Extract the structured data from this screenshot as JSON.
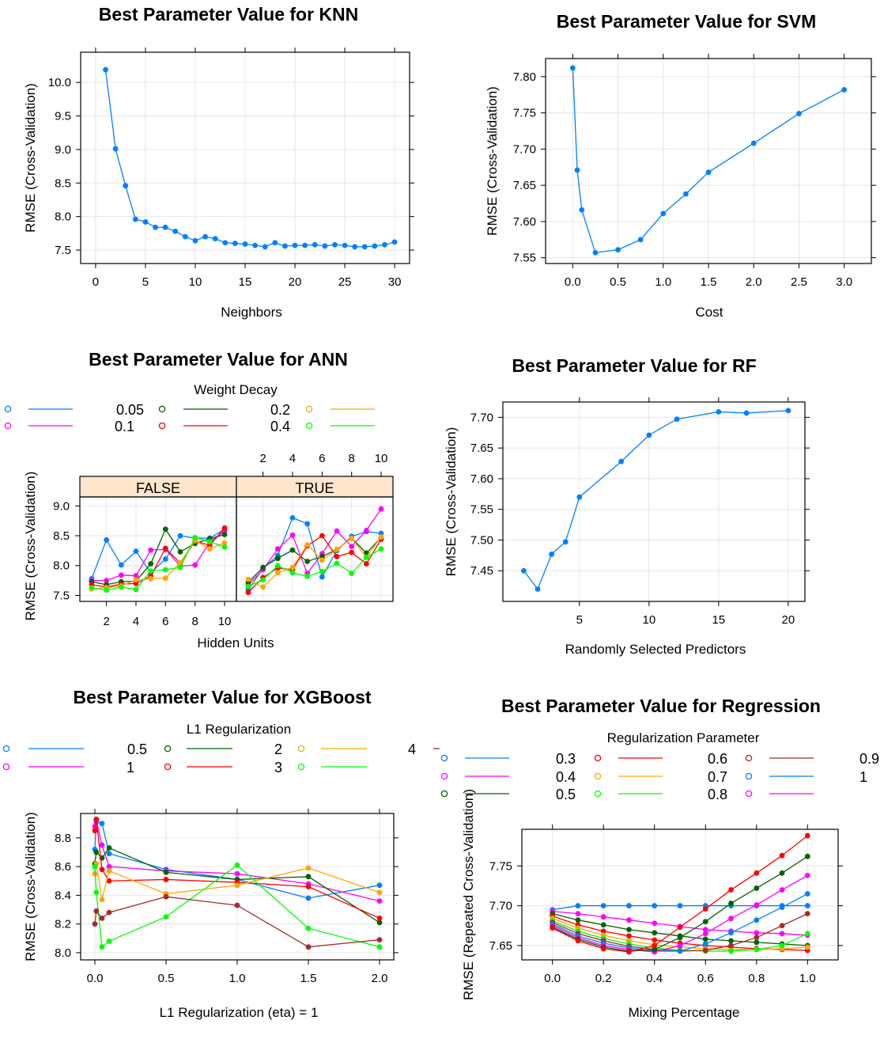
{
  "colors": {
    "blue": "#0080ff",
    "magenta": "#ff00ff",
    "darkgreen": "#006400",
    "red": "#ff0000",
    "orange": "#ffa500",
    "green": "#00ff00",
    "brown": "#a52a2a",
    "strip": "#ffe5cc",
    "grid": "#e6e6e6"
  },
  "chart_data": [
    {
      "id": "knn",
      "type": "line",
      "title": "Best Parameter Value for KNN",
      "xlabel": "Neighbors",
      "ylabel": "RMSE (Cross-Validation)",
      "xlim": [
        -1.5,
        31.5
      ],
      "ylim": [
        7.3,
        10.45
      ],
      "xticks": [
        "0",
        "5",
        "10",
        "15",
        "20",
        "25",
        "30"
      ],
      "yticks": [
        "7.5",
        "8.0",
        "8.5",
        "9.0",
        "9.5",
        "10.0"
      ],
      "series": [
        {
          "color": "blue",
          "x": [
            1,
            2,
            3,
            4,
            5,
            6,
            7,
            8,
            9,
            10,
            11,
            12,
            13,
            14,
            15,
            16,
            17,
            18,
            19,
            20,
            21,
            22,
            23,
            24,
            25,
            26,
            27,
            28,
            29,
            30
          ],
          "y": [
            10.19,
            9.01,
            8.46,
            7.96,
            7.92,
            7.84,
            7.84,
            7.78,
            7.7,
            7.64,
            7.7,
            7.67,
            7.61,
            7.6,
            7.59,
            7.57,
            7.55,
            7.61,
            7.56,
            7.57,
            7.57,
            7.58,
            7.56,
            7.58,
            7.57,
            7.55,
            7.55,
            7.56,
            7.58,
            7.62
          ]
        }
      ]
    },
    {
      "id": "svm",
      "type": "line",
      "title": "Best Parameter Value for SVM",
      "xlabel": "Cost",
      "ylabel": "RMSE (Cross-Validation)",
      "xlim": [
        -0.3,
        3.3
      ],
      "ylim": [
        7.542,
        7.825
      ],
      "xticks": [
        "0.0",
        "0.5",
        "1.0",
        "1.5",
        "2.0",
        "2.5",
        "3.0"
      ],
      "yticks": [
        "7.55",
        "7.60",
        "7.65",
        "7.70",
        "7.75",
        "7.80"
      ],
      "series": [
        {
          "color": "blue",
          "x": [
            0.0,
            0.05,
            0.1,
            0.25,
            0.5,
            0.75,
            1.0,
            1.25,
            1.5,
            2.0,
            2.5,
            3.0
          ],
          "y": [
            7.812,
            7.671,
            7.616,
            7.557,
            7.561,
            7.575,
            7.611,
            7.638,
            7.668,
            7.708,
            7.749,
            7.782
          ]
        }
      ]
    },
    {
      "id": "ann",
      "type": "line",
      "title": "Best Parameter Value for ANN",
      "xlabel": "Hidden Units",
      "ylabel": "RMSE (Cross-Validation)",
      "legend_title": "Weight Decay",
      "legend": [
        {
          "label": "",
          "color": "blue"
        },
        {
          "label": "",
          "color": "magenta"
        },
        {
          "label": "0.05",
          "color": "darkgreen"
        },
        {
          "label": "0.1",
          "color": "red"
        },
        {
          "label": "0.2",
          "color": "orange"
        },
        {
          "label": "0.4",
          "color": "green"
        }
      ],
      "panels": [
        "FALSE",
        "TRUE"
      ],
      "xlim": [
        0.2,
        10.8
      ],
      "ylim": [
        7.4,
        9.15
      ],
      "xticks": [
        "2",
        "4",
        "6",
        "8",
        "10"
      ],
      "yticks": [
        "7.5",
        "8.0",
        "8.5",
        "9.0"
      ],
      "x": [
        1,
        2,
        3,
        4,
        5,
        6,
        7,
        8,
        9,
        10
      ],
      "series_false": [
        {
          "color": "blue",
          "y": [
            7.78,
            8.43,
            8.01,
            8.24,
            7.88,
            8.11,
            8.5,
            8.46,
            8.46,
            8.61
          ]
        },
        {
          "color": "magenta",
          "y": [
            7.75,
            7.75,
            7.84,
            7.83,
            8.26,
            8.27,
            7.99,
            8.01,
            8.39,
            8.58
          ]
        },
        {
          "color": "darkgreen",
          "y": [
            7.73,
            7.68,
            7.73,
            7.74,
            8.03,
            8.61,
            8.23,
            8.37,
            8.45,
            8.52
          ]
        },
        {
          "color": "red",
          "y": [
            7.68,
            7.64,
            7.69,
            7.7,
            7.82,
            8.29,
            8.04,
            8.41,
            8.34,
            8.63
          ]
        },
        {
          "color": "orange",
          "y": [
            7.61,
            7.63,
            7.66,
            7.76,
            7.78,
            7.79,
            8.05,
            8.42,
            8.28,
            8.38
          ]
        },
        {
          "color": "green",
          "y": [
            7.63,
            7.59,
            7.64,
            7.6,
            7.91,
            7.93,
            7.97,
            8.47,
            8.4,
            8.31
          ]
        }
      ],
      "series_true": [
        {
          "color": "blue",
          "y": [
            7.6,
            7.95,
            8.17,
            8.8,
            8.7,
            7.81,
            8.25,
            8.49,
            8.57,
            8.54
          ]
        },
        {
          "color": "magenta",
          "y": [
            7.68,
            7.93,
            8.28,
            8.51,
            7.87,
            8.2,
            8.58,
            8.32,
            8.59,
            8.95
          ]
        },
        {
          "color": "darkgreen",
          "y": [
            7.72,
            7.97,
            8.12,
            8.26,
            8.07,
            8.15,
            8.27,
            8.46,
            8.21,
            8.47
          ]
        },
        {
          "color": "red",
          "y": [
            7.55,
            7.8,
            7.96,
            7.93,
            8.33,
            8.5,
            8.15,
            8.22,
            8.03,
            8.44
          ]
        },
        {
          "color": "orange",
          "y": [
            7.77,
            7.64,
            7.88,
            7.97,
            8.35,
            8.09,
            8.27,
            8.46,
            8.14,
            8.48
          ]
        },
        {
          "color": "green",
          "y": [
            7.65,
            7.76,
            8.0,
            7.88,
            7.82,
            7.9,
            8.04,
            7.87,
            8.14,
            8.28
          ]
        }
      ]
    },
    {
      "id": "rf",
      "type": "line",
      "title": "Best Parameter Value for RF",
      "xlabel": "Randomly Selected Predictors",
      "ylabel": "RMSE (Cross-Validation)",
      "xlim": [
        -0.5,
        21.2
      ],
      "ylim": [
        7.4,
        7.725
      ],
      "xticks": [
        "5",
        "10",
        "15",
        "20"
      ],
      "yticks": [
        "7.45",
        "7.50",
        "7.55",
        "7.60",
        "7.65",
        "7.70"
      ],
      "series": [
        {
          "color": "blue",
          "x": [
            1,
            2,
            3,
            4,
            5,
            8,
            10,
            12,
            15,
            17,
            20
          ],
          "y": [
            7.45,
            7.42,
            7.477,
            7.497,
            7.57,
            7.628,
            7.671,
            7.697,
            7.709,
            7.707,
            7.711
          ]
        }
      ]
    },
    {
      "id": "xgboost",
      "type": "line",
      "title": "Best Parameter Value for XGBoost",
      "xlabel": "L1 Regularization (eta) = 1",
      "ylabel": "RMSE (Cross-Validation)",
      "legend_title": "L1 Regularization",
      "legend": [
        {
          "label": "",
          "color": "blue"
        },
        {
          "label": "",
          "color": "magenta"
        },
        {
          "label": "0.5",
          "color": "darkgreen"
        },
        {
          "label": "1",
          "color": "red"
        },
        {
          "label": "2",
          "color": "orange"
        },
        {
          "label": "3",
          "color": "green"
        },
        {
          "label": "4",
          "color": "brown"
        }
      ],
      "xlim": [
        -0.1,
        2.1
      ],
      "ylim": [
        7.95,
        8.97
      ],
      "xticks": [
        "0.0",
        "0.5",
        "1.0",
        "1.5",
        "2.0"
      ],
      "yticks": [
        "8.0",
        "8.2",
        "8.4",
        "8.6",
        "8.8"
      ],
      "series": [
        {
          "color": "blue",
          "x": [
            0.0,
            0.01,
            0.05,
            0.1,
            0.5,
            1.0,
            1.5,
            2.0
          ],
          "y": [
            8.72,
            8.91,
            8.9,
            8.69,
            8.58,
            8.51,
            8.38,
            8.47
          ]
        },
        {
          "color": "magenta",
          "x": [
            0.0,
            0.01,
            0.05,
            0.1,
            0.5,
            1.0,
            1.5,
            2.0
          ],
          "y": [
            8.88,
            8.92,
            8.75,
            8.6,
            8.57,
            8.55,
            8.48,
            8.36
          ]
        },
        {
          "color": "darkgreen",
          "x": [
            0.0,
            0.01,
            0.05,
            0.1,
            0.5,
            1.0,
            1.5,
            2.0
          ],
          "y": [
            8.62,
            8.7,
            8.66,
            8.73,
            8.56,
            8.51,
            8.53,
            8.21
          ]
        },
        {
          "color": "red",
          "x": [
            0.0,
            0.01,
            0.05,
            0.1,
            0.5,
            1.0,
            1.5,
            2.0
          ],
          "y": [
            8.85,
            8.93,
            8.58,
            8.5,
            8.51,
            8.49,
            8.46,
            8.24
          ]
        },
        {
          "color": "orange",
          "x": [
            0.0,
            0.01,
            0.05,
            0.1,
            0.5,
            1.0,
            1.5,
            2.0
          ],
          "y": [
            8.55,
            8.62,
            8.37,
            8.57,
            8.41,
            8.47,
            8.59,
            8.42
          ]
        },
        {
          "color": "green",
          "x": [
            0.0,
            0.01,
            0.05,
            0.1,
            0.5,
            1.0,
            1.5,
            2.0
          ],
          "y": [
            8.6,
            8.42,
            8.04,
            8.08,
            8.25,
            8.61,
            8.17,
            8.04
          ]
        },
        {
          "color": "brown",
          "x": [
            0.0,
            0.01,
            0.05,
            0.1,
            0.5,
            1.0,
            1.5,
            2.0
          ],
          "y": [
            8.2,
            8.29,
            8.24,
            8.28,
            8.39,
            8.33,
            8.04,
            8.09
          ]
        }
      ]
    },
    {
      "id": "regression",
      "type": "line",
      "title": "Best Parameter Value for Regression",
      "xlabel": "Mixing Percentage",
      "ylabel": "RMSE (Repeated Cross-Validation)",
      "legend_title": "Regularization Parameter",
      "legend": [
        {
          "label": "",
          "color": "blue"
        },
        {
          "label": "",
          "color": "magenta"
        },
        {
          "label": "",
          "color": "darkgreen"
        },
        {
          "label": "0.3",
          "color": "red"
        },
        {
          "label": "0.4",
          "color": "orange"
        },
        {
          "label": "0.5",
          "color": "green"
        },
        {
          "label": "0.6",
          "color": "brown"
        },
        {
          "label": "0.7",
          "color": "blue"
        },
        {
          "label": "0.8",
          "color": "magenta"
        },
        {
          "label": "0.9",
          "color": "darkgreen"
        },
        {
          "label": "1",
          "color": "red"
        }
      ],
      "xlim": [
        -0.12,
        1.12
      ],
      "ylim": [
        7.632,
        7.796
      ],
      "xticks": [
        "0.0",
        "0.2",
        "0.4",
        "0.6",
        "0.8",
        "1.0"
      ],
      "yticks": [
        "7.65",
        "7.70",
        "7.75"
      ],
      "x": [
        0.0,
        0.1,
        0.2,
        0.3,
        0.4,
        0.5,
        0.6,
        0.7,
        0.8,
        0.9,
        1.0
      ],
      "series": [
        {
          "color": "blue",
          "y": [
            7.695,
            7.7,
            7.7,
            7.7,
            7.7,
            7.7,
            7.7,
            7.7,
            7.7,
            7.7,
            7.7
          ]
        },
        {
          "color": "magenta",
          "y": [
            7.693,
            7.69,
            7.686,
            7.682,
            7.678,
            7.674,
            7.67,
            7.668,
            7.666,
            7.665,
            7.663
          ]
        },
        {
          "color": "darkgreen",
          "y": [
            7.69,
            7.682,
            7.676,
            7.67,
            7.666,
            7.662,
            7.658,
            7.656,
            7.654,
            7.652,
            7.65
          ]
        },
        {
          "color": "red",
          "y": [
            7.687,
            7.676,
            7.668,
            7.662,
            7.657,
            7.653,
            7.65,
            7.648,
            7.646,
            7.645,
            7.644
          ]
        },
        {
          "color": "orange",
          "y": [
            7.684,
            7.672,
            7.663,
            7.656,
            7.651,
            7.648,
            7.646,
            7.645,
            7.645,
            7.646,
            7.648
          ]
        },
        {
          "color": "green",
          "y": [
            7.681,
            7.668,
            7.659,
            7.652,
            7.647,
            7.644,
            7.643,
            7.643,
            7.645,
            7.65,
            7.665
          ]
        },
        {
          "color": "brown",
          "y": [
            7.679,
            7.665,
            7.656,
            7.649,
            7.645,
            7.643,
            7.644,
            7.65,
            7.66,
            7.675,
            7.69
          ]
        },
        {
          "color": "blue",
          "y": [
            7.677,
            7.662,
            7.653,
            7.647,
            7.643,
            7.643,
            7.652,
            7.666,
            7.682,
            7.698,
            7.715
          ]
        },
        {
          "color": "magenta",
          "y": [
            7.675,
            7.66,
            7.65,
            7.645,
            7.642,
            7.65,
            7.665,
            7.684,
            7.701,
            7.72,
            7.738
          ]
        },
        {
          "color": "darkgreen",
          "y": [
            7.673,
            7.658,
            7.648,
            7.643,
            7.645,
            7.66,
            7.68,
            7.703,
            7.722,
            7.741,
            7.762
          ]
        },
        {
          "color": "red",
          "y": [
            7.672,
            7.656,
            7.646,
            7.642,
            7.65,
            7.673,
            7.696,
            7.72,
            7.741,
            7.763,
            7.788
          ]
        }
      ]
    }
  ]
}
